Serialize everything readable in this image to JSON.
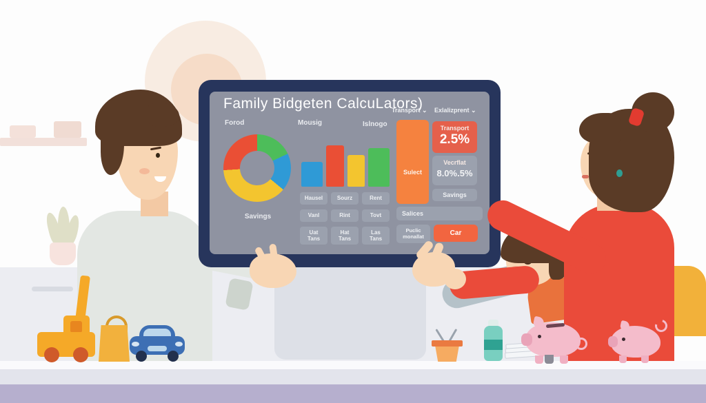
{
  "screen": {
    "title": "Family Bidgeten CalcuLators)",
    "dropdowns": [
      {
        "label": "Transport"
      },
      {
        "label": "Exlalizprent"
      }
    ],
    "column_labels": [
      "Forod",
      "Mousig",
      "Islnogo"
    ],
    "donut_caption": "Savings",
    "grid_buttons": [
      {
        "label": "Hausel"
      },
      {
        "label": "Sourz"
      },
      {
        "label": "Rent"
      },
      {
        "label": "Vanl"
      },
      {
        "label": "Rint"
      },
      {
        "label": "Tovt"
      },
      {
        "label": "Uat\nTans"
      },
      {
        "label": "Hat\nTans"
      },
      {
        "label": "Las\nTans"
      }
    ],
    "select_bar_label": "Sulect",
    "transport_card": {
      "title": "Transport",
      "value": "2.5%"
    },
    "vecrflat_card": {
      "title": "Vecrflat",
      "value": "8.0%.5%"
    },
    "savings_button": "Savings",
    "salices_field": {
      "value": "Salices"
    },
    "public_button": "Puclic\nmonallat",
    "car_button": "Car"
  },
  "icons": {
    "chevron_down": "⌄"
  },
  "palette": {
    "monitor_frame": "#27355c",
    "screen_bg": "#8f93a1",
    "accent_orange": "#f5823f",
    "accent_red": "#ea4b3a",
    "chair_yellow": "#f2b13a",
    "floor_lavender": "#b6afce",
    "piggy_pink": "#f4bccb"
  },
  "chart_data": [
    {
      "type": "pie",
      "donut": true,
      "title": "Forod",
      "caption": "Savings",
      "legend": "none",
      "segments": [
        {
          "label": "green-slice",
          "value": 18,
          "color": "#4dbd5a"
        },
        {
          "label": "blue-slice",
          "value": 18,
          "color": "#2f9ad6"
        },
        {
          "label": "yellow-slice",
          "value": 38,
          "color": "#f3c52f"
        },
        {
          "label": "red-slice",
          "value": 26,
          "color": "#ea4f35"
        }
      ],
      "unit": "percent (estimated from arc angles, clockwise from top)"
    },
    {
      "type": "bar",
      "title": "Mousig / Islnogo",
      "xlabel": "",
      "ylabel": "",
      "ylim": [
        0,
        60
      ],
      "series": [
        {
          "label": "blue-bar",
          "value": 36,
          "color": "#2f9ad6"
        },
        {
          "label": "red-bar",
          "value": 60,
          "color": "#ea4f35"
        },
        {
          "label": "yellow-bar",
          "value": 46,
          "color": "#f3c52f"
        },
        {
          "label": "green-bar",
          "value": 56,
          "color": "#4dbd5a"
        }
      ],
      "unit": "relative height (no axis labels shown)"
    }
  ]
}
